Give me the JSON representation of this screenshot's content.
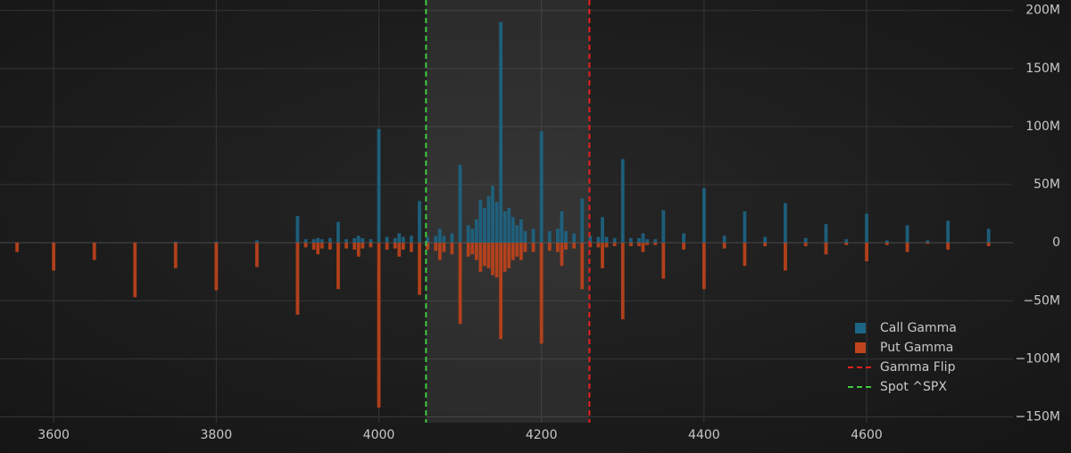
{
  "chart_data": {
    "type": "bar",
    "barmode": "relative",
    "grid": true,
    "legend": "bottom-right",
    "xlim": [
      3534,
      4780
    ],
    "xticks": [
      3600,
      3800,
      4000,
      4200,
      4400,
      4600
    ],
    "ylim": [
      -155,
      209
    ],
    "yticks": [
      {
        "value": 200,
        "label": "200M"
      },
      {
        "value": 150,
        "label": "150M"
      },
      {
        "value": 100,
        "label": "100M"
      },
      {
        "value": 50,
        "label": "50M"
      },
      0,
      {
        "value": -50,
        "label": "−50M"
      },
      {
        "value": -100,
        "label": "−100M"
      },
      {
        "value": -150,
        "label": "−150M"
      }
    ],
    "x": [
      3555,
      3600,
      3650,
      3700,
      3750,
      3800,
      3850,
      3900,
      3910,
      3920,
      3925,
      3930,
      3940,
      3950,
      3960,
      3970,
      3975,
      3980,
      3990,
      4000,
      4010,
      4020,
      4025,
      4030,
      4040,
      4050,
      4060,
      4070,
      4075,
      4080,
      4090,
      4100,
      4110,
      4115,
      4120,
      4125,
      4130,
      4135,
      4140,
      4145,
      4150,
      4155,
      4160,
      4165,
      4170,
      4175,
      4180,
      4190,
      4200,
      4210,
      4220,
      4225,
      4230,
      4240,
      4250,
      4260,
      4270,
      4275,
      4280,
      4290,
      4300,
      4310,
      4320,
      4325,
      4330,
      4340,
      4350,
      4375,
      4400,
      4425,
      4450,
      4475,
      4500,
      4525,
      4550,
      4575,
      4600,
      4625,
      4650,
      4675,
      4700,
      4750
    ],
    "series": [
      {
        "name": "Call Gamma",
        "color": "#1d6584",
        "values": [
          0,
          0,
          0,
          0,
          1,
          1,
          2,
          23,
          3,
          3,
          4,
          3,
          4,
          18,
          3,
          4,
          6,
          4,
          3,
          98,
          5,
          4,
          8,
          5,
          6,
          36,
          5,
          6,
          12,
          6,
          8,
          67,
          15,
          12,
          20,
          37,
          30,
          40,
          49,
          35,
          190,
          27,
          30,
          22,
          15,
          20,
          10,
          12,
          96,
          10,
          12,
          27,
          10,
          8,
          38,
          6,
          5,
          22,
          5,
          4,
          72,
          4,
          4,
          8,
          3,
          3,
          28,
          8,
          47,
          6,
          27,
          5,
          34,
          4,
          16,
          3,
          25,
          2,
          15,
          2,
          19,
          12
        ]
      },
      {
        "name": "Put Gamma",
        "color": "#c0441b",
        "values": [
          -8,
          -24,
          -15,
          -47,
          -22,
          -41,
          -21,
          -62,
          -4,
          -6,
          -10,
          -5,
          -6,
          -40,
          -5,
          -6,
          -12,
          -5,
          -4,
          -142,
          -6,
          -5,
          -12,
          -6,
          -8,
          -45,
          -6,
          -7,
          -15,
          -8,
          -10,
          -70,
          -12,
          -10,
          -15,
          -25,
          -20,
          -22,
          -28,
          -30,
          -83,
          -25,
          -22,
          -15,
          -12,
          -15,
          -8,
          -8,
          -87,
          -7,
          -8,
          -20,
          -6,
          -5,
          -40,
          -4,
          -4,
          -22,
          -4,
          -3,
          -66,
          -3,
          -3,
          -8,
          -2,
          -2,
          -31,
          -6,
          -40,
          -5,
          -20,
          -3,
          -24,
          -3,
          -10,
          -2,
          -16,
          -2,
          -8,
          -1,
          -6,
          -3
        ]
      }
    ],
    "lines": [
      {
        "name": "Gamma Flip",
        "x": 4259,
        "color": "#e8201c"
      },
      {
        "name": "Spot ^SPX",
        "x": 4058,
        "color": "#3ec83e"
      }
    ]
  }
}
